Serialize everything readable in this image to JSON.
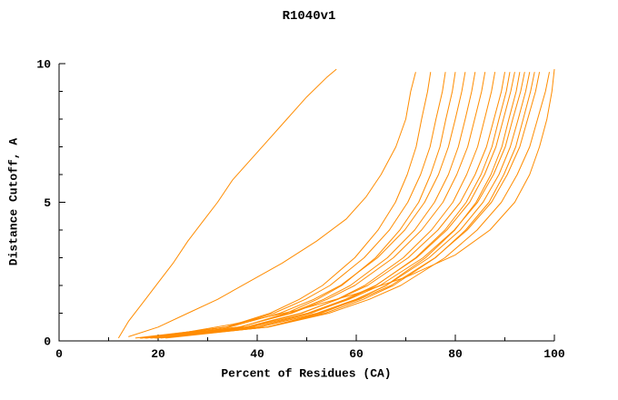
{
  "title": "R1040v1",
  "chart_data": {
    "type": "line",
    "title": "R1040v1",
    "xlabel": "Percent of Residues (CA)",
    "ylabel": "Distance Cutoff, A",
    "xlim": [
      0,
      100
    ],
    "ylim": [
      0,
      10
    ],
    "xticks": [
      0,
      20,
      40,
      60,
      80,
      100
    ],
    "yticks": [
      0,
      5,
      10
    ],
    "x_minor_step": 10,
    "y_minor_step": 1,
    "grid": false,
    "legend_position": "none",
    "line_color": "#ff8c00",
    "axis_color": "#000000",
    "background_color": "#ffffff",
    "series": [
      {
        "points": [
          [
            12,
            0.1
          ],
          [
            14,
            0.7
          ],
          [
            17,
            1.4
          ],
          [
            20,
            2.1
          ],
          [
            23,
            2.8
          ],
          [
            26,
            3.6
          ],
          [
            29,
            4.3
          ],
          [
            32,
            5.0
          ],
          [
            35,
            5.8
          ],
          [
            38,
            6.4
          ],
          [
            42,
            7.2
          ],
          [
            46,
            8.0
          ],
          [
            50,
            8.8
          ],
          [
            54,
            9.5
          ],
          [
            56,
            9.8
          ]
        ]
      },
      {
        "points": [
          [
            14,
            0.15
          ],
          [
            20,
            0.5
          ],
          [
            26,
            1.0
          ],
          [
            32,
            1.5
          ],
          [
            38,
            2.1
          ],
          [
            45,
            2.8
          ],
          [
            52,
            3.6
          ],
          [
            58,
            4.4
          ],
          [
            62,
            5.2
          ],
          [
            65,
            6.0
          ],
          [
            68,
            7.0
          ],
          [
            70,
            8.0
          ],
          [
            71,
            9.0
          ],
          [
            72,
            9.7
          ]
        ]
      },
      {
        "points": [
          [
            17.2,
            0.1
          ],
          [
            33.7,
            0.5
          ],
          [
            42.6,
            1
          ],
          [
            48.5,
            1.5
          ],
          [
            53.2,
            2
          ],
          [
            59.7,
            3
          ],
          [
            64.4,
            4
          ],
          [
            67.9,
            5
          ],
          [
            70.3,
            6
          ],
          [
            72.1,
            7
          ],
          [
            73.2,
            8
          ],
          [
            74.4,
            9
          ],
          [
            75,
            9.7
          ]
        ]
      },
      {
        "points": [
          [
            16.3,
            0.1
          ],
          [
            33.9,
            0.5
          ],
          [
            43.4,
            1
          ],
          [
            49.7,
            1.5
          ],
          [
            54.7,
            2
          ],
          [
            61.6,
            3
          ],
          [
            66.7,
            4
          ],
          [
            70.4,
            5
          ],
          [
            73,
            6
          ],
          [
            74.9,
            7
          ],
          [
            76.1,
            8
          ],
          [
            77.4,
            9
          ],
          [
            78,
            9.7
          ]
        ]
      },
      {
        "points": [
          [
            19.2,
            0.1
          ],
          [
            36.6,
            0.5
          ],
          [
            45.9,
            1
          ],
          [
            52.1,
            1.5
          ],
          [
            57.1,
            2
          ],
          [
            63.9,
            3
          ],
          [
            68.8,
            4
          ],
          [
            72.6,
            5
          ],
          [
            75,
            6
          ],
          [
            76.9,
            7
          ],
          [
            78.1,
            8
          ],
          [
            79.4,
            9
          ],
          [
            80,
            9.7
          ]
        ]
      },
      {
        "points": [
          [
            15.4,
            0.1
          ],
          [
            34.4,
            0.5
          ],
          [
            44.6,
            1
          ],
          [
            51.4,
            1.5
          ],
          [
            56.8,
            2
          ],
          [
            64.3,
            3
          ],
          [
            69.8,
            4
          ],
          [
            73.8,
            5
          ],
          [
            76.6,
            6
          ],
          [
            78.6,
            7
          ],
          [
            80,
            8
          ],
          [
            81.3,
            9
          ],
          [
            82,
            9.7
          ]
        ]
      },
      {
        "points": [
          [
            17.4,
            0.1
          ],
          [
            36.4,
            0.5
          ],
          [
            46.6,
            1
          ],
          [
            53.4,
            1.5
          ],
          [
            58.8,
            2
          ],
          [
            66.3,
            3
          ],
          [
            71.8,
            4
          ],
          [
            75.8,
            5
          ],
          [
            78.6,
            6
          ],
          [
            80.6,
            7
          ],
          [
            82,
            8
          ],
          [
            83.3,
            9
          ],
          [
            84,
            9.7
          ]
        ]
      },
      {
        "points": [
          [
            16.4,
            0.1
          ],
          [
            36.3,
            0.5
          ],
          [
            47,
            1
          ],
          [
            54.1,
            1.5
          ],
          [
            59.7,
            2
          ],
          [
            67.5,
            3
          ],
          [
            73.2,
            4
          ],
          [
            77.5,
            5
          ],
          [
            80.3,
            6
          ],
          [
            82.5,
            7
          ],
          [
            83.9,
            8
          ],
          [
            85.3,
            9
          ],
          [
            86,
            9.7
          ]
        ]
      },
      {
        "points": [
          [
            18.4,
            0.1
          ],
          [
            38.3,
            0.5
          ],
          [
            49,
            1
          ],
          [
            56.1,
            1.5
          ],
          [
            61.7,
            2
          ],
          [
            69.5,
            3
          ],
          [
            75.2,
            4
          ],
          [
            79.5,
            5
          ],
          [
            82.3,
            6
          ],
          [
            84.5,
            7
          ],
          [
            85.9,
            8
          ],
          [
            87.3,
            9
          ],
          [
            88,
            9.7
          ]
        ]
      },
      {
        "points": [
          [
            16.5,
            0.1
          ],
          [
            37.5,
            0.5
          ],
          [
            48.8,
            1
          ],
          [
            56.3,
            1.5
          ],
          [
            62.3,
            2
          ],
          [
            70.5,
            3
          ],
          [
            76.5,
            4
          ],
          [
            81,
            5
          ],
          [
            84,
            6
          ],
          [
            86.3,
            7
          ],
          [
            87.8,
            8
          ],
          [
            89.3,
            9
          ],
          [
            90,
            9.7
          ]
        ]
      },
      {
        "points": [
          [
            19.5,
            0.1
          ],
          [
            39.9,
            0.5
          ],
          [
            50.9,
            1
          ],
          [
            58.2,
            1.5
          ],
          [
            64,
            2
          ],
          [
            72,
            3
          ],
          [
            77.9,
            4
          ],
          [
            82.2,
            5
          ],
          [
            85.2,
            6
          ],
          [
            87.4,
            7
          ],
          [
            88.8,
            8
          ],
          [
            90.3,
            9
          ],
          [
            91,
            9.7
          ]
        ]
      },
      {
        "points": [
          [
            17.5,
            0.1
          ],
          [
            38.8,
            0.5
          ],
          [
            50.2,
            1
          ],
          [
            57.8,
            1.5
          ],
          [
            63.9,
            2
          ],
          [
            72.2,
            3
          ],
          [
            78.3,
            4
          ],
          [
            82.9,
            5
          ],
          [
            85.9,
            6
          ],
          [
            88.2,
            7
          ],
          [
            89.7,
            8
          ],
          [
            91.2,
            9
          ],
          [
            92,
            9.7
          ]
        ]
      },
      {
        "points": [
          [
            21.5,
            0.1
          ],
          [
            41.9,
            0.5
          ],
          [
            52.9,
            1
          ],
          [
            60.2,
            1.5
          ],
          [
            66,
            2
          ],
          [
            74,
            3
          ],
          [
            79.9,
            4
          ],
          [
            84.2,
            5
          ],
          [
            87.2,
            6
          ],
          [
            89.4,
            7
          ],
          [
            90.8,
            8
          ],
          [
            92.3,
            9
          ],
          [
            93,
            9.7
          ]
        ]
      },
      {
        "points": [
          [
            16.6,
            0.1
          ],
          [
            38.7,
            0.5
          ],
          [
            50.6,
            1
          ],
          [
            58.5,
            1.5
          ],
          [
            64.8,
            2
          ],
          [
            73.5,
            3
          ],
          [
            79.8,
            4
          ],
          [
            84.5,
            5
          ],
          [
            87.7,
            6
          ],
          [
            90.1,
            7
          ],
          [
            91.6,
            8
          ],
          [
            93.2,
            9
          ],
          [
            94,
            9.7
          ]
        ]
      },
      {
        "points": [
          [
            18.6,
            0.1
          ],
          [
            40.4,
            0.5
          ],
          [
            52.1,
            1
          ],
          [
            59.9,
            1.5
          ],
          [
            66.1,
            2
          ],
          [
            74.7,
            3
          ],
          [
            81,
            4
          ],
          [
            85.6,
            5
          ],
          [
            88.8,
            6
          ],
          [
            91.1,
            7
          ],
          [
            92.7,
            8
          ],
          [
            94.2,
            9
          ],
          [
            95,
            9.7
          ]
        ]
      },
      {
        "points": [
          [
            20.5,
            0.1
          ],
          [
            42.1,
            0.5
          ],
          [
            53.7,
            1
          ],
          [
            61.4,
            1.5
          ],
          [
            67.5,
            2
          ],
          [
            76,
            3
          ],
          [
            82.1,
            4
          ],
          [
            86.8,
            5
          ],
          [
            89.8,
            6
          ],
          [
            92.2,
            7
          ],
          [
            93.7,
            8
          ],
          [
            95.2,
            9
          ],
          [
            96,
            9.7
          ]
        ]
      },
      {
        "points": [
          [
            17.6,
            0.1
          ],
          [
            40.3,
            0.5
          ],
          [
            52.5,
            1
          ],
          [
            60.6,
            1.5
          ],
          [
            67,
            2
          ],
          [
            75.9,
            3
          ],
          [
            82.4,
            4
          ],
          [
            87.3,
            5
          ],
          [
            90.5,
            6
          ],
          [
            93,
            7
          ],
          [
            94.6,
            8
          ],
          [
            96.2,
            9
          ],
          [
            97,
            9.7
          ]
        ]
      },
      {
        "points": [
          [
            19.6,
            0.1
          ],
          [
            42.3,
            0.5
          ],
          [
            54.5,
            1
          ],
          [
            62.6,
            1.5
          ],
          [
            69,
            2
          ],
          [
            77.9,
            3
          ],
          [
            84.4,
            4
          ],
          [
            89.3,
            5
          ],
          [
            92.5,
            6
          ],
          [
            95,
            7
          ],
          [
            96.6,
            8
          ],
          [
            98.2,
            9
          ],
          [
            99,
            9.7
          ]
        ]
      },
      {
        "points": [
          [
            22,
            0.2
          ],
          [
            35,
            0.6
          ],
          [
            48,
            1.1
          ],
          [
            60,
            1.7
          ],
          [
            70,
            2.3
          ],
          [
            80,
            3.1
          ],
          [
            87,
            4.0
          ],
          [
            92,
            5.0
          ],
          [
            95,
            6.0
          ],
          [
            97,
            7.0
          ],
          [
            98.5,
            8.0
          ],
          [
            99.5,
            9.0
          ],
          [
            100,
            9.8
          ]
        ]
      }
    ]
  }
}
